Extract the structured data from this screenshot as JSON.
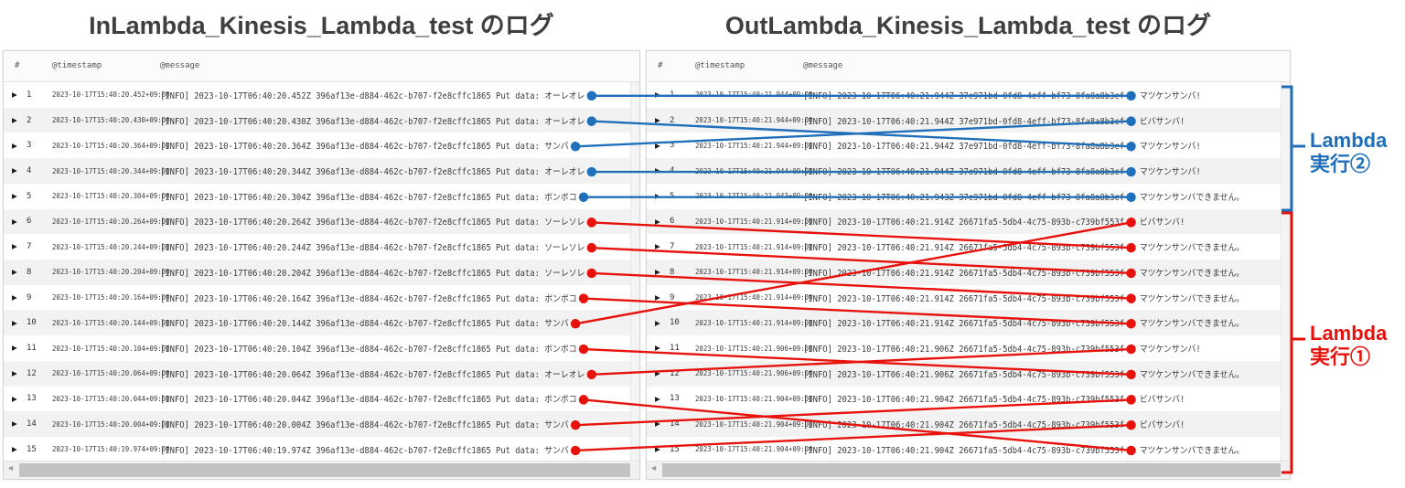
{
  "left_table": {
    "title": "InLambda_Kinesis_Lambda_test のログ",
    "columns": [
      "#",
      "@timestamp",
      "@message"
    ],
    "rows": [
      {
        "num": "1",
        "timestamp": "2023-10-17T15:40:20.452+09:00",
        "message": "[INFO] 2023-10-17T06:40:20.452Z 396af13e-d884-462c-b707-f2e8cffc1865 Put data: オーレオレ",
        "dot": "blue"
      },
      {
        "num": "2",
        "timestamp": "2023-10-17T15:40:20.430+09:00",
        "message": "[INFO] 2023-10-17T06:40:20.430Z 396af13e-d884-462c-b707-f2e8cffc1865 Put data: オーレオレ",
        "dot": "blue"
      },
      {
        "num": "3",
        "timestamp": "2023-10-17T15:40:20.364+09:00",
        "message": "[INFO] 2023-10-17T06:40:20.364Z 396af13e-d884-462c-b707-f2e8cffc1865 Put data: サンバ",
        "dot": "blue"
      },
      {
        "num": "4",
        "timestamp": "2023-10-17T15:40:20.344+09:00",
        "message": "[INFO] 2023-10-17T06:40:20.344Z 396af13e-d884-462c-b707-f2e8cffc1865 Put data: オーレオレ",
        "dot": "blue"
      },
      {
        "num": "5",
        "timestamp": "2023-10-17T15:40:20.304+09:00",
        "message": "[INFO] 2023-10-17T06:40:20.304Z 396af13e-d884-462c-b707-f2e8cffc1865 Put data: ポンポコ",
        "dot": "blue"
      },
      {
        "num": "6",
        "timestamp": "2023-10-17T15:40:20.264+09:00",
        "message": "[INFO] 2023-10-17T06:40:20.264Z 396af13e-d884-462c-b707-f2e8cffc1865 Put data: ソーレソレ",
        "dot": "red"
      },
      {
        "num": "7",
        "timestamp": "2023-10-17T15:40:20.244+09:00",
        "message": "[INFO] 2023-10-17T06:40:20.244Z 396af13e-d884-462c-b707-f2e8cffc1865 Put data: ソーレソレ",
        "dot": "red"
      },
      {
        "num": "8",
        "timestamp": "2023-10-17T15:40:20.204+09:00",
        "message": "[INFO] 2023-10-17T06:40:20.204Z 396af13e-d884-462c-b707-f2e8cffc1865 Put data: ソーレソレ",
        "dot": "red"
      },
      {
        "num": "9",
        "timestamp": "2023-10-17T15:40:20.164+09:00",
        "message": "[INFO] 2023-10-17T06:40:20.164Z 396af13e-d884-462c-b707-f2e8cffc1865 Put data: ポンポコ",
        "dot": "red"
      },
      {
        "num": "10",
        "timestamp": "2023-10-17T15:40:20.144+09:00",
        "message": "[INFO] 2023-10-17T06:40:20.144Z 396af13e-d884-462c-b707-f2e8cffc1865 Put data: サンバ",
        "dot": "red"
      },
      {
        "num": "11",
        "timestamp": "2023-10-17T15:40:20.104+09:00",
        "message": "[INFO] 2023-10-17T06:40:20.104Z 396af13e-d884-462c-b707-f2e8cffc1865 Put data: ポンポコ",
        "dot": "red"
      },
      {
        "num": "12",
        "timestamp": "2023-10-17T15:40:20.064+09:00",
        "message": "[INFO] 2023-10-17T06:40:20.064Z 396af13e-d884-462c-b707-f2e8cffc1865 Put data: オーレオレ",
        "dot": "red"
      },
      {
        "num": "13",
        "timestamp": "2023-10-17T15:40:20.044+09:00",
        "message": "[INFO] 2023-10-17T06:40:20.044Z 396af13e-d884-462c-b707-f2e8cffc1865 Put data: ポンポコ",
        "dot": "red"
      },
      {
        "num": "14",
        "timestamp": "2023-10-17T15:40:20.004+09:00",
        "message": "[INFO] 2023-10-17T06:40:20.004Z 396af13e-d884-462c-b707-f2e8cffc1865 Put data: サンバ",
        "dot": "red"
      },
      {
        "num": "15",
        "timestamp": "2023-10-17T15:40:19.974+09:00",
        "message": "[INFO] 2023-10-17T06:40:19.974Z 396af13e-d884-462c-b707-f2e8cffc1865 Put data: サンバ",
        "dot": "red"
      }
    ]
  },
  "right_table": {
    "title": "OutLambda_Kinesis_Lambda_test のログ",
    "columns": [
      "#",
      "@timestamp",
      "@message"
    ],
    "rows": [
      {
        "num": "1",
        "timestamp": "2023-10-17T15:40:21.944+09:00",
        "message_prefix": "[INFO] 2023-10-17T06:40:21.944Z 37e971bd-0fd8-4eff-bf73-8fa8a8b3cf",
        "response": "マツケンサンバ!",
        "dot": "blue"
      },
      {
        "num": "2",
        "timestamp": "2023-10-17T15:40:21.944+09:00",
        "message_prefix": "[INFO] 2023-10-17T06:40:21.944Z 37e971bd-0fd8-4eff-bf73-8fa8a8b3cf",
        "response": "ビバサンバ!",
        "dot": "blue"
      },
      {
        "num": "3",
        "timestamp": "2023-10-17T15:40:21.944+09:00",
        "message_prefix": "[INFO] 2023-10-17T06:40:21.944Z 37e971bd-0fd8-4eff-bf73-8fa8a8b3cf",
        "response": "マツケンサンバ!",
        "dot": "blue"
      },
      {
        "num": "4",
        "timestamp": "2023-10-17T15:40:21.944+09:00",
        "message_prefix": "[INFO] 2023-10-17T06:40:21.944Z 37e971bd-0fd8-4eff-bf73-8fa8a8b3cf",
        "response": "マツケンサンバ!",
        "dot": "blue"
      },
      {
        "num": "5",
        "timestamp": "2023-10-17T15:40:21.943+09:00",
        "message_prefix": "[INFO] 2023-10-17T06:40:21.943Z 37e971bd-0fd8-4eff-bf73-8fa8a8b3cf",
        "response": "マツケンサンバできません。",
        "dot": "blue"
      },
      {
        "num": "6",
        "timestamp": "2023-10-17T15:40:21.914+09:00",
        "message_prefix": "[INFO] 2023-10-17T06:40:21.914Z 26671fa5-5db4-4c75-893b-c739bf553f",
        "response": "ビバサンバ!",
        "dot": "red"
      },
      {
        "num": "7",
        "timestamp": "2023-10-17T15:40:21.914+09:00",
        "message_prefix": "[INFO] 2023-10-17T06:40:21.914Z 26671fa5-5db4-4c75-893b-c739bf553f",
        "response": "マツケンサンバできません。",
        "dot": "red"
      },
      {
        "num": "8",
        "timestamp": "2023-10-17T15:40:21.914+09:00",
        "message_prefix": "[INFO] 2023-10-17T06:40:21.914Z 26671fa5-5db4-4c75-893b-c739bf553f",
        "response": "マツケンサンバできません。",
        "dot": "red"
      },
      {
        "num": "9",
        "timestamp": "2023-10-17T15:40:21.914+09:00",
        "message_prefix": "[INFO] 2023-10-17T06:40:21.914Z 26671fa5-5db4-4c75-893b-c739bf553f",
        "response": "マツケンサンバできません。",
        "dot": "red"
      },
      {
        "num": "10",
        "timestamp": "2023-10-17T15:40:21.914+09:00",
        "message_prefix": "[INFO] 2023-10-17T06:40:21.914Z 26671fa5-5db4-4c75-893b-c739bf553f",
        "response": "マツケンサンバできません。",
        "dot": "red"
      },
      {
        "num": "11",
        "timestamp": "2023-10-17T15:40:21.906+09:00",
        "message_prefix": "[INFO] 2023-10-17T06:40:21.906Z 26671fa5-5db4-4c75-893b-c739bf553f",
        "response": "マツケンサンバ!",
        "dot": "red"
      },
      {
        "num": "12",
        "timestamp": "2023-10-17T15:40:21.906+09:00",
        "message_prefix": "[INFO] 2023-10-17T06:40:21.906Z 26671fa5-5db4-4c75-893b-c739bf553f",
        "response": "マツケンサンバできません。",
        "dot": "red"
      },
      {
        "num": "13",
        "timestamp": "2023-10-17T15:40:21.904+09:00",
        "message_prefix": "[INFO] 2023-10-17T06:40:21.904Z 26671fa5-5db4-4c75-893b-c739bf553f",
        "response": "ビバサンバ!",
        "dot": "red"
      },
      {
        "num": "14",
        "timestamp": "2023-10-17T15:40:21.904+09:00",
        "message_prefix": "[INFO] 2023-10-17T06:40:21.904Z 26671fa5-5db4-4c75-893b-c739bf553f",
        "response": "ビバサンバ!",
        "dot": "red"
      },
      {
        "num": "15",
        "timestamp": "2023-10-17T15:40:21.904+09:00",
        "message_prefix": "[INFO] 2023-10-17T06:40:21.904Z 26671fa5-5db4-4c75-893b-c739bf553f",
        "response": "マツケンサンバできません。",
        "dot": "red"
      }
    ]
  },
  "connections": [
    {
      "from": 1,
      "to": 1,
      "color": "blue"
    },
    {
      "from": 2,
      "to": 3,
      "color": "blue"
    },
    {
      "from": 3,
      "to": 2,
      "color": "blue"
    },
    {
      "from": 4,
      "to": 4,
      "color": "blue"
    },
    {
      "from": 5,
      "to": 5,
      "color": "blue"
    },
    {
      "from": 6,
      "to": 7,
      "color": "red"
    },
    {
      "from": 7,
      "to": 8,
      "color": "red"
    },
    {
      "from": 8,
      "to": 9,
      "color": "red"
    },
    {
      "from": 9,
      "to": 10,
      "color": "red"
    },
    {
      "from": 10,
      "to": 6,
      "color": "red"
    },
    {
      "from": 11,
      "to": 12,
      "color": "red"
    },
    {
      "from": 12,
      "to": 11,
      "color": "red"
    },
    {
      "from": 13,
      "to": 15,
      "color": "red"
    },
    {
      "from": 14,
      "to": 13,
      "color": "red"
    },
    {
      "from": 15,
      "to": 14,
      "color": "red"
    }
  ],
  "annotations": {
    "blue": {
      "line1": "Lambda",
      "line2": "実行②"
    },
    "red": {
      "line1": "Lambda",
      "line2": "実行①"
    }
  },
  "scrollbar": {
    "left_arrow": "◄"
  },
  "colors": {
    "blue": "#1f6fba",
    "red": "#e8120d",
    "title": "#3f3f3f"
  }
}
